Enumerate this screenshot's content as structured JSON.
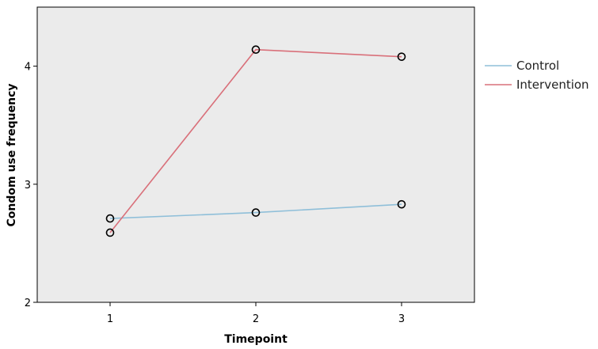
{
  "chart_data": {
    "type": "line",
    "xlabel": "Timepoint",
    "ylabel": "Condom  use frequency",
    "x": [
      1,
      2,
      3
    ],
    "xlim": [
      0.5,
      3.5
    ],
    "ylim": [
      2,
      4.5
    ],
    "yticks": [
      2,
      3,
      4
    ],
    "grid": false,
    "legend_position": "right",
    "plot_background": "#ebebeb",
    "series": [
      {
        "name": "Control",
        "color": "#8fbfd9",
        "values": [
          2.71,
          2.76,
          2.83
        ]
      },
      {
        "name": "Intervention",
        "color": "#d9707a",
        "values": [
          2.59,
          4.14,
          4.08
        ]
      }
    ]
  }
}
